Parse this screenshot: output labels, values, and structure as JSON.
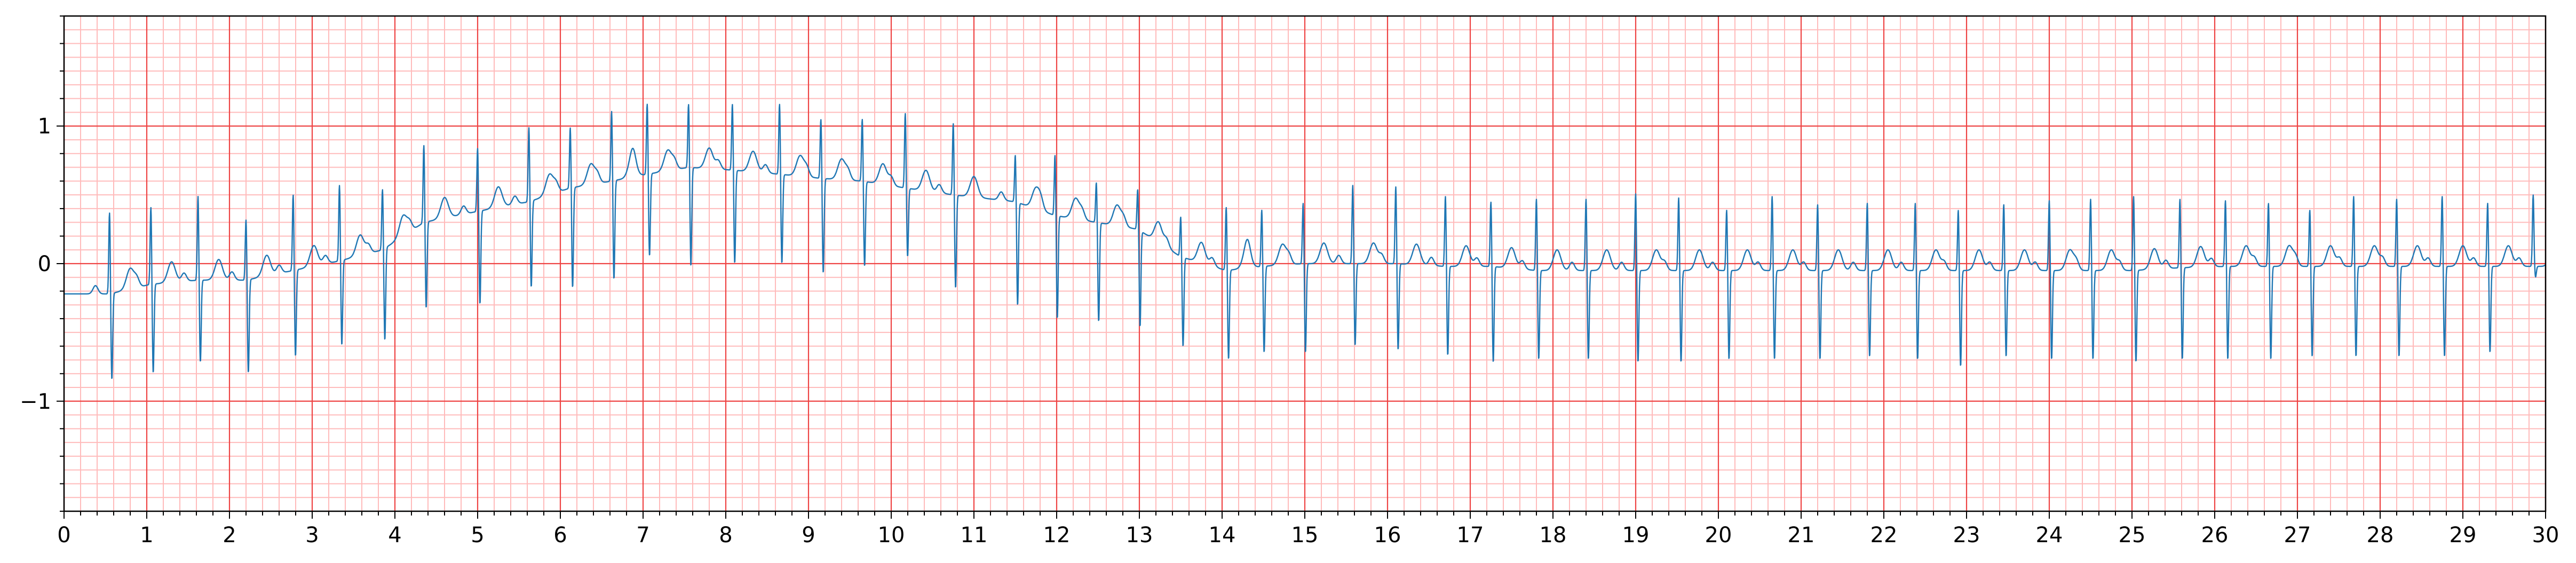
{
  "chart_data": {
    "type": "line",
    "title": "",
    "xlabel": "",
    "ylabel": "",
    "xlim": [
      0,
      30
    ],
    "ylim": [
      -1.8,
      1.8
    ],
    "grid": {
      "major": true,
      "minor": true,
      "major_color": "#ee4444",
      "minor_color": "#ffbbbb"
    },
    "x_ticks": [
      0,
      1,
      2,
      3,
      4,
      5,
      6,
      7,
      8,
      9,
      10,
      11,
      12,
      13,
      14,
      15,
      16,
      17,
      18,
      19,
      20,
      21,
      22,
      23,
      24,
      25,
      26,
      27,
      28,
      29,
      30
    ],
    "x_tick_labels": [
      "0",
      "1",
      "2",
      "3",
      "4",
      "5",
      "6",
      "7",
      "8",
      "9",
      "10",
      "11",
      "12",
      "13",
      "14",
      "15",
      "16",
      "17",
      "18",
      "19",
      "20",
      "21",
      "22",
      "23",
      "24",
      "25",
      "26",
      "27",
      "28",
      "29",
      "30"
    ],
    "y_ticks": [
      -1,
      0,
      1
    ],
    "y_tick_labels": [
      "−1",
      "0",
      "1"
    ],
    "series": [
      {
        "color": "#1f77b4",
        "beats": [
          {
            "t": 0.55,
            "r": 0.38,
            "s": -0.85,
            "base": -0.22
          },
          {
            "t": 1.05,
            "r": 0.42,
            "s": -0.8,
            "base": -0.15
          },
          {
            "t": 1.62,
            "r": 0.5,
            "s": -0.72,
            "base": -0.12
          },
          {
            "t": 2.2,
            "r": 0.33,
            "s": -0.8,
            "base": -0.12
          },
          {
            "t": 2.77,
            "r": 0.51,
            "s": -0.68,
            "base": -0.05
          },
          {
            "t": 3.33,
            "r": 0.58,
            "s": -0.6,
            "base": 0.02
          },
          {
            "t": 3.85,
            "r": 0.55,
            "s": -0.57,
            "base": 0.1
          },
          {
            "t": 4.35,
            "r": 0.87,
            "s": -0.33,
            "base": 0.3
          },
          {
            "t": 5.0,
            "r": 0.85,
            "s": -0.3,
            "base": 0.38
          },
          {
            "t": 5.62,
            "r": 1.0,
            "s": -0.18,
            "base": 0.45
          },
          {
            "t": 6.12,
            "r": 1.0,
            "s": -0.18,
            "base": 0.55
          },
          {
            "t": 6.62,
            "r": 1.12,
            "s": -0.12,
            "base": 0.6
          },
          {
            "t": 7.05,
            "r": 1.17,
            "s": 0.05,
            "base": 0.65
          },
          {
            "t": 7.55,
            "r": 1.17,
            "s": -0.02,
            "base": 0.7
          },
          {
            "t": 8.08,
            "r": 1.17,
            "s": 0.0,
            "base": 0.68
          },
          {
            "t": 8.65,
            "r": 1.17,
            "s": 0.0,
            "base": 0.65
          },
          {
            "t": 9.15,
            "r": 1.06,
            "s": -0.07,
            "base": 0.62
          },
          {
            "t": 9.65,
            "r": 1.06,
            "s": -0.02,
            "base": 0.6
          },
          {
            "t": 10.17,
            "r": 1.1,
            "s": 0.05,
            "base": 0.55
          },
          {
            "t": 10.75,
            "r": 1.03,
            "s": -0.18,
            "base": 0.5
          },
          {
            "t": 11.5,
            "r": 0.8,
            "s": -0.3,
            "base": 0.45
          },
          {
            "t": 11.98,
            "r": 0.8,
            "s": -0.4,
            "base": 0.35
          },
          {
            "t": 12.48,
            "r": 0.6,
            "s": -0.42,
            "base": 0.3
          },
          {
            "t": 12.98,
            "r": 0.55,
            "s": -0.45,
            "base": 0.25
          },
          {
            "t": 13.5,
            "r": 0.35,
            "s": -0.6,
            "base": 0.05
          },
          {
            "t": 14.05,
            "r": 0.42,
            "s": -0.7,
            "base": -0.05
          },
          {
            "t": 14.48,
            "r": 0.4,
            "s": -0.65,
            "base": -0.02
          },
          {
            "t": 14.98,
            "r": 0.45,
            "s": -0.65,
            "base": 0.0
          },
          {
            "t": 15.58,
            "r": 0.58,
            "s": -0.6,
            "base": 0.0
          },
          {
            "t": 16.1,
            "r": 0.57,
            "s": -0.63,
            "base": 0.0
          },
          {
            "t": 16.7,
            "r": 0.5,
            "s": -0.67,
            "base": -0.02
          },
          {
            "t": 17.25,
            "r": 0.46,
            "s": -0.72,
            "base": -0.02
          },
          {
            "t": 17.8,
            "r": 0.48,
            "s": -0.7,
            "base": -0.05
          },
          {
            "t": 18.4,
            "r": 0.48,
            "s": -0.7,
            "base": -0.05
          },
          {
            "t": 19.0,
            "r": 0.52,
            "s": -0.72,
            "base": -0.05
          },
          {
            "t": 19.52,
            "r": 0.49,
            "s": -0.72,
            "base": -0.05
          },
          {
            "t": 20.1,
            "r": 0.4,
            "s": -0.7,
            "base": -0.05
          },
          {
            "t": 20.65,
            "r": 0.5,
            "s": -0.7,
            "base": -0.05
          },
          {
            "t": 21.2,
            "r": 0.44,
            "s": -0.7,
            "base": -0.05
          },
          {
            "t": 21.8,
            "r": 0.45,
            "s": -0.68,
            "base": -0.05
          },
          {
            "t": 22.38,
            "r": 0.45,
            "s": -0.7,
            "base": -0.05
          },
          {
            "t": 22.9,
            "r": 0.4,
            "s": -0.75,
            "base": -0.05
          },
          {
            "t": 23.45,
            "r": 0.44,
            "s": -0.68,
            "base": -0.05
          },
          {
            "t": 24.0,
            "r": 0.47,
            "s": -0.7,
            "base": -0.05
          },
          {
            "t": 24.5,
            "r": 0.48,
            "s": -0.7,
            "base": -0.05
          },
          {
            "t": 25.02,
            "r": 0.5,
            "s": -0.72,
            "base": -0.05
          },
          {
            "t": 25.58,
            "r": 0.48,
            "s": -0.7,
            "base": -0.03
          },
          {
            "t": 26.13,
            "r": 0.47,
            "s": -0.7,
            "base": -0.02
          },
          {
            "t": 26.65,
            "r": 0.45,
            "s": -0.7,
            "base": -0.02
          },
          {
            "t": 27.15,
            "r": 0.4,
            "s": -0.68,
            "base": -0.02
          },
          {
            "t": 27.68,
            "r": 0.5,
            "s": -0.68,
            "base": -0.02
          },
          {
            "t": 28.2,
            "r": 0.48,
            "s": -0.68,
            "base": -0.02
          },
          {
            "t": 28.75,
            "r": 0.5,
            "s": -0.68,
            "base": -0.02
          },
          {
            "t": 29.3,
            "r": 0.45,
            "s": -0.65,
            "base": -0.02
          },
          {
            "t": 29.85,
            "r": 0.5,
            "s": -0.1,
            "base": -0.02
          }
        ]
      }
    ]
  }
}
